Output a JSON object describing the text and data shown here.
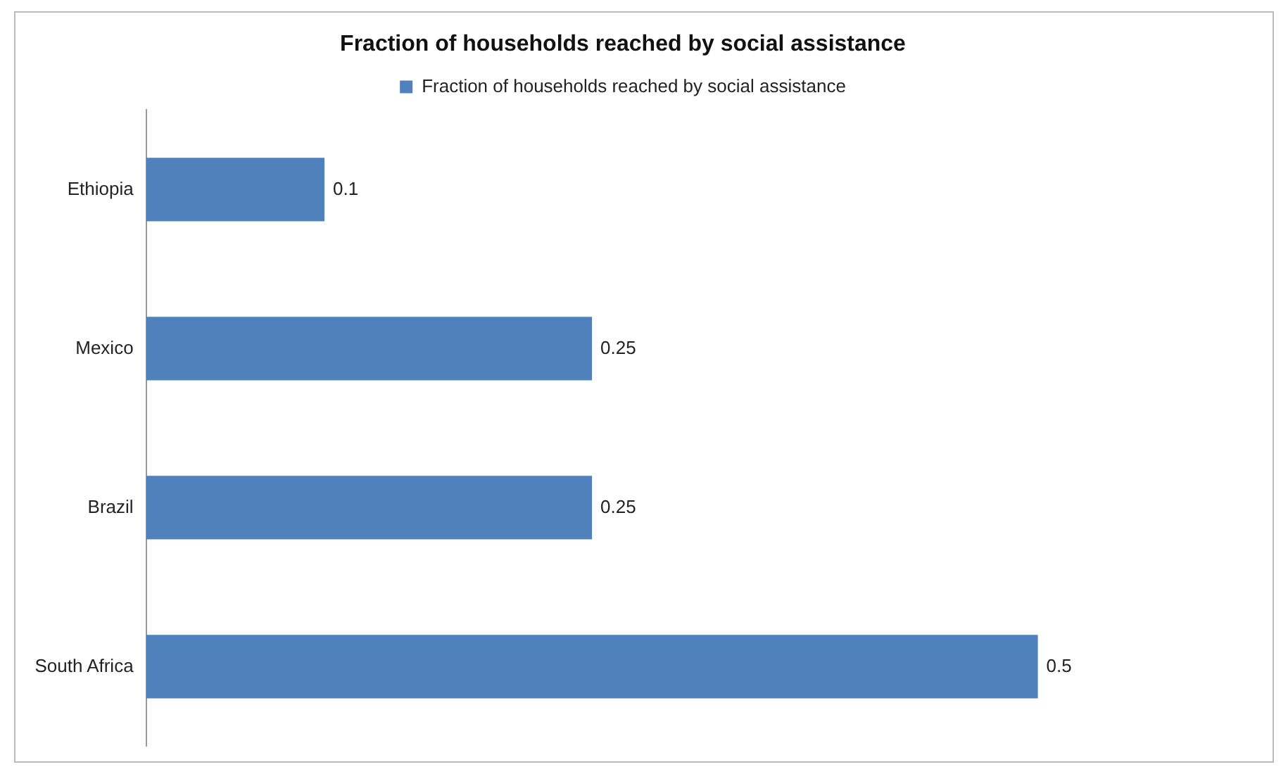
{
  "chart_data": {
    "type": "bar",
    "orientation": "horizontal",
    "title": "Fraction of households reached by social assistance",
    "categories": [
      "Ethiopia",
      "Mexico",
      "Brazil",
      "South Africa"
    ],
    "series": [
      {
        "name": "Fraction of households reached by social assistance",
        "color": "#4f81bd",
        "values": [
          0.1,
          0.25,
          0.25,
          0.5
        ]
      }
    ],
    "data_labels": true,
    "legend": "top",
    "grid": false,
    "tick_labels": "y"
  }
}
